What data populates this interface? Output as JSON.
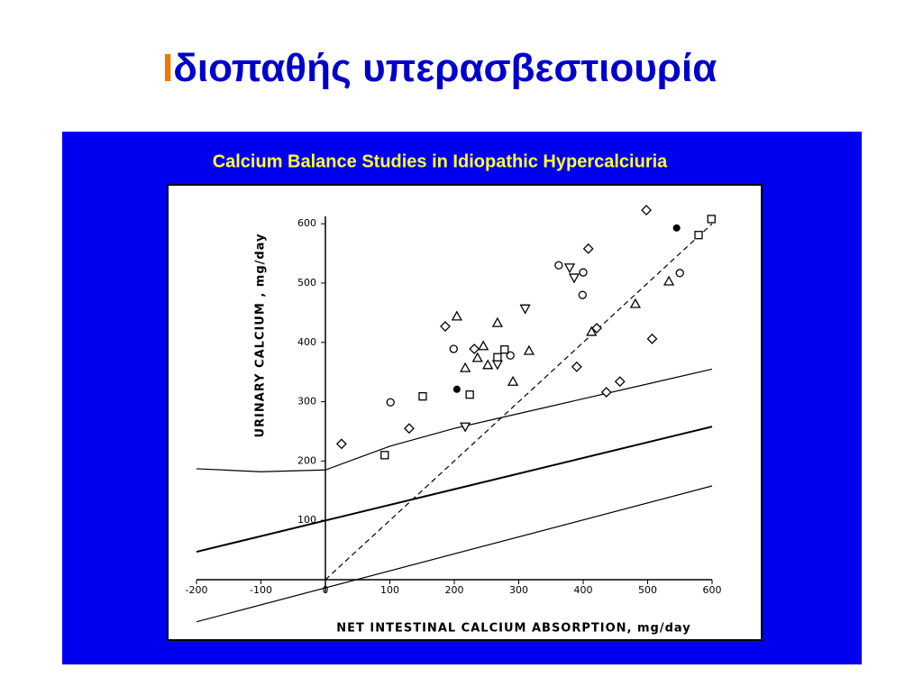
{
  "slide": {
    "title_initial": "I",
    "title_rest": "διοπαθής υπερασβεστιουρία"
  },
  "chart_data": {
    "type": "scatter",
    "title": "Calcium Balance Studies in Idiopathic Hypercalciuria",
    "x_label": "NET INTESTINAL CALCIUM ABSORPTION, mg/day",
    "y_label": "URINARY CALCIUM , mg/day",
    "xlim": [
      -200,
      600
    ],
    "ylim": [
      -80,
      640
    ],
    "xticks": [
      -200,
      -100,
      0,
      100,
      200,
      300,
      400,
      500,
      600
    ],
    "yticks": [
      100,
      200,
      300,
      400,
      500,
      600
    ],
    "series": [
      {
        "marker": "diamond",
        "color": "#000000",
        "x": [
          25,
          130,
          186,
          231,
          408,
          498,
          390,
          436,
          457,
          507,
          421
        ],
        "values": [
          229,
          255,
          427,
          389,
          558,
          623,
          359,
          316,
          334,
          406,
          424
        ]
      },
      {
        "marker": "circle",
        "color": "#000000",
        "x": [
          101,
          199,
          362,
          400,
          399,
          550,
          287
        ],
        "values": [
          299,
          389,
          530,
          518,
          480,
          517,
          378
        ]
      },
      {
        "marker": "filled-circle",
        "color": "#000000",
        "x": [
          204,
          545
        ],
        "values": [
          321,
          593
        ]
      },
      {
        "marker": "triangle-up",
        "color": "#000000",
        "x": [
          204,
          217,
          236,
          245,
          267,
          252,
          291,
          316,
          481,
          533,
          413
        ],
        "values": [
          444,
          357,
          374,
          394,
          433,
          362,
          334,
          386,
          465,
          503,
          418
        ]
      },
      {
        "marker": "triangle-down",
        "color": "#000000",
        "x": [
          217,
          310,
          379,
          386,
          267
        ],
        "values": [
          258,
          457,
          526,
          509,
          363
        ]
      },
      {
        "marker": "square",
        "color": "#000000",
        "x": [
          151,
          92,
          224,
          267,
          278,
          599,
          579
        ],
        "values": [
          309,
          210,
          312,
          375,
          388,
          608,
          581
        ]
      }
    ],
    "lines": [
      {
        "style": "thin",
        "x": [
          -200,
          -100,
          0,
          100,
          200,
          300,
          400,
          500,
          600
        ],
        "values": [
          187,
          182,
          185,
          225,
          255,
          280,
          305,
          330,
          355
        ]
      },
      {
        "style": "thick",
        "x": [
          -200,
          600
        ],
        "values": [
          47,
          258
        ]
      },
      {
        "style": "thin",
        "x": [
          -200,
          600
        ],
        "values": [
          -71,
          158
        ]
      },
      {
        "style": "dashed",
        "x": [
          0,
          600
        ],
        "values": [
          0,
          600
        ]
      }
    ]
  }
}
